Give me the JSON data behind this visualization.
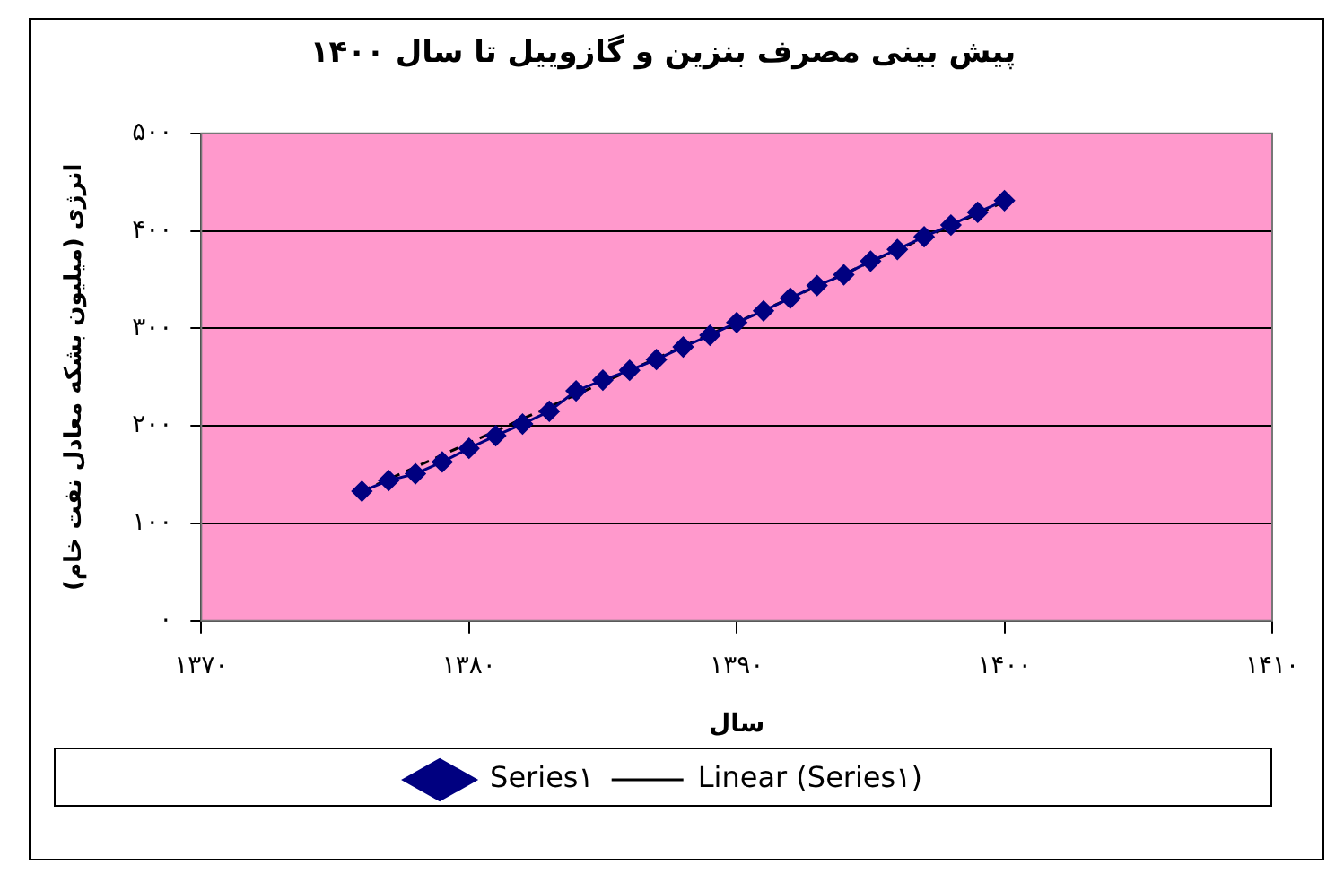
{
  "chart_data": {
    "type": "line",
    "title": "پیش بینی مصرف بنزین و گازوییل تا سال ۱۴۰۰",
    "xlabel": "سال",
    "ylabel": "انرژی (میلیون بشکه معادل نفت خام)",
    "x": [
      1376,
      1377,
      1378,
      1379,
      1380,
      1381,
      1382,
      1383,
      1384,
      1385,
      1386,
      1387,
      1388,
      1389,
      1390,
      1391,
      1392,
      1393,
      1394,
      1395,
      1396,
      1397,
      1398,
      1399,
      1400
    ],
    "series": [
      {
        "name": "Series۱",
        "color": "#000080",
        "marker": "diamond",
        "line_style": "solid",
        "values": [
          133,
          144,
          151,
          163,
          177,
          190,
          202,
          215,
          236,
          247,
          257,
          268,
          281,
          293,
          306,
          318,
          331,
          344,
          355,
          369,
          381,
          394,
          406,
          419,
          431
        ]
      },
      {
        "name": "Linear (Series۱)",
        "type": "line",
        "color": "#000000",
        "marker": "none",
        "line_style": "dashed",
        "x": [
          1376,
          1400
        ],
        "values": [
          133,
          430
        ]
      }
    ],
    "xlim": [
      1370,
      1410
    ],
    "xticks": [
      {
        "value": 1370,
        "label": "۱۳۷۰"
      },
      {
        "value": 1380,
        "label": "۱۳۸۰"
      },
      {
        "value": 1390,
        "label": "۱۳۹۰"
      },
      {
        "value": 1400,
        "label": "۱۴۰۰"
      },
      {
        "value": 1410,
        "label": "۱۴۱۰"
      }
    ],
    "ylim": [
      0,
      500
    ],
    "yticks": [
      {
        "value": 0,
        "label": "۰"
      },
      {
        "value": 100,
        "label": "۱۰۰"
      },
      {
        "value": 200,
        "label": "۲۰۰"
      },
      {
        "value": 300,
        "label": "۳۰۰"
      },
      {
        "value": 400,
        "label": "۴۰۰"
      },
      {
        "value": 500,
        "label": "۵۰۰"
      }
    ],
    "grid": "y",
    "legend": "bottom"
  }
}
